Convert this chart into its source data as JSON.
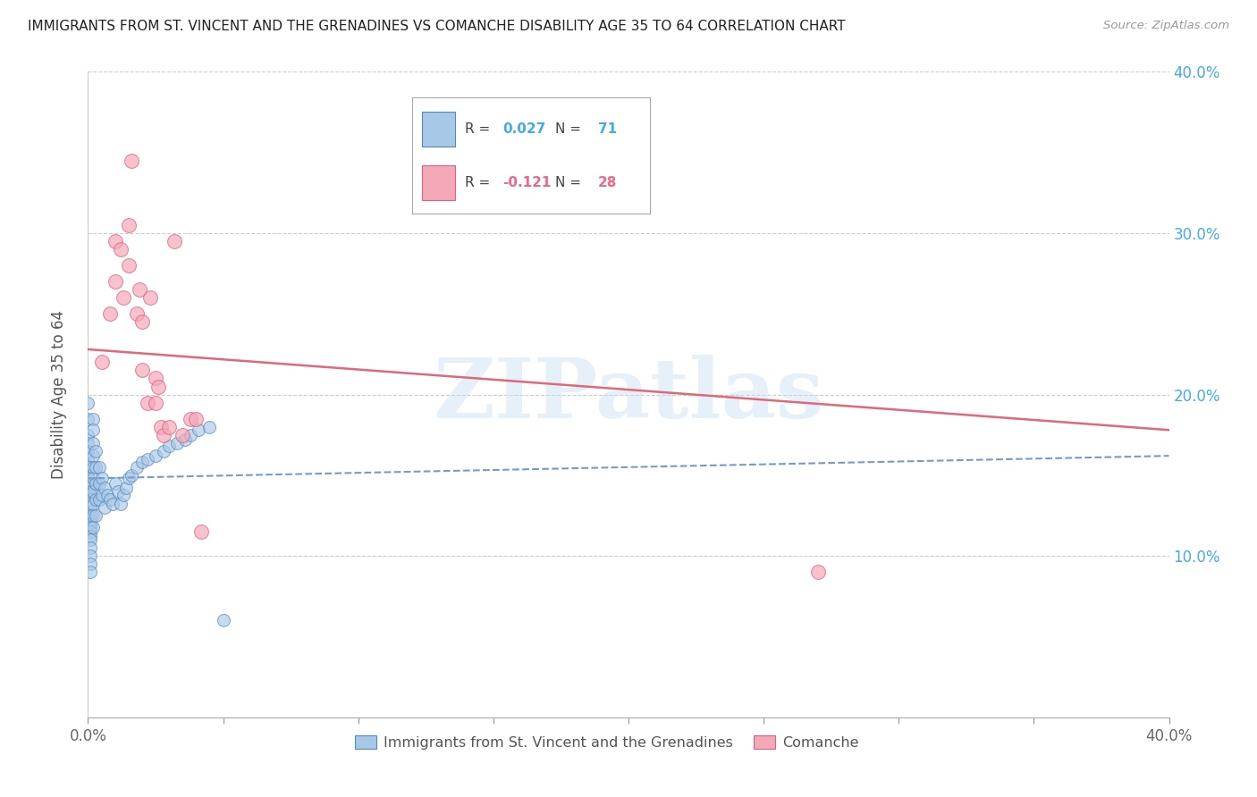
{
  "title": "IMMIGRANTS FROM ST. VINCENT AND THE GRENADINES VS COMANCHE DISABILITY AGE 35 TO 64 CORRELATION CHART",
  "source": "Source: ZipAtlas.com",
  "ylabel": "Disability Age 35 to 64",
  "xlim": [
    0.0,
    0.4
  ],
  "ylim": [
    0.0,
    0.4
  ],
  "color_blue": "#a8c8e8",
  "color_pink": "#f4a8b8",
  "color_blue_edge": "#5588bb",
  "color_pink_edge": "#e06080",
  "color_blue_line": "#7799cc",
  "color_pink_line": "#e06878",
  "color_blue_text": "#44aaee",
  "color_pink_text": "#ee6688",
  "watermark": "ZIPatlas",
  "blue_scatter_x": [
    0.0,
    0.0,
    0.0,
    0.0,
    0.0,
    0.0,
    0.0,
    0.0,
    0.0,
    0.0,
    0.001,
    0.001,
    0.001,
    0.001,
    0.001,
    0.001,
    0.001,
    0.001,
    0.001,
    0.001,
    0.001,
    0.001,
    0.001,
    0.001,
    0.001,
    0.001,
    0.001,
    0.002,
    0.002,
    0.002,
    0.002,
    0.002,
    0.002,
    0.002,
    0.002,
    0.002,
    0.002,
    0.003,
    0.003,
    0.003,
    0.003,
    0.003,
    0.004,
    0.004,
    0.004,
    0.005,
    0.005,
    0.006,
    0.006,
    0.007,
    0.008,
    0.009,
    0.01,
    0.011,
    0.012,
    0.013,
    0.014,
    0.015,
    0.016,
    0.018,
    0.02,
    0.022,
    0.025,
    0.028,
    0.03,
    0.033,
    0.036,
    0.038,
    0.041,
    0.045,
    0.05
  ],
  "blue_scatter_y": [
    0.195,
    0.185,
    0.175,
    0.17,
    0.165,
    0.16,
    0.155,
    0.15,
    0.148,
    0.145,
    0.143,
    0.14,
    0.138,
    0.135,
    0.133,
    0.13,
    0.125,
    0.122,
    0.12,
    0.118,
    0.115,
    0.112,
    0.11,
    0.105,
    0.1,
    0.095,
    0.09,
    0.185,
    0.178,
    0.17,
    0.162,
    0.155,
    0.148,
    0.14,
    0.132,
    0.125,
    0.118,
    0.165,
    0.155,
    0.145,
    0.135,
    0.125,
    0.155,
    0.145,
    0.135,
    0.148,
    0.138,
    0.142,
    0.13,
    0.138,
    0.135,
    0.132,
    0.145,
    0.14,
    0.132,
    0.138,
    0.142,
    0.148,
    0.15,
    0.155,
    0.158,
    0.16,
    0.162,
    0.165,
    0.168,
    0.17,
    0.172,
    0.175,
    0.178,
    0.18,
    0.06
  ],
  "pink_scatter_x": [
    0.005,
    0.008,
    0.01,
    0.01,
    0.012,
    0.013,
    0.015,
    0.015,
    0.016,
    0.018,
    0.019,
    0.02,
    0.02,
    0.022,
    0.023,
    0.025,
    0.025,
    0.026,
    0.027,
    0.028,
    0.03,
    0.032,
    0.035,
    0.038,
    0.04,
    0.042,
    0.27
  ],
  "pink_scatter_y": [
    0.22,
    0.25,
    0.295,
    0.27,
    0.29,
    0.26,
    0.305,
    0.28,
    0.345,
    0.25,
    0.265,
    0.215,
    0.245,
    0.195,
    0.26,
    0.195,
    0.21,
    0.205,
    0.18,
    0.175,
    0.18,
    0.295,
    0.175,
    0.185,
    0.185,
    0.115,
    0.09
  ],
  "blue_line_x": [
    0.0,
    0.4
  ],
  "blue_line_y": [
    0.148,
    0.162
  ],
  "pink_line_x": [
    0.0,
    0.4
  ],
  "pink_line_y": [
    0.228,
    0.178
  ]
}
